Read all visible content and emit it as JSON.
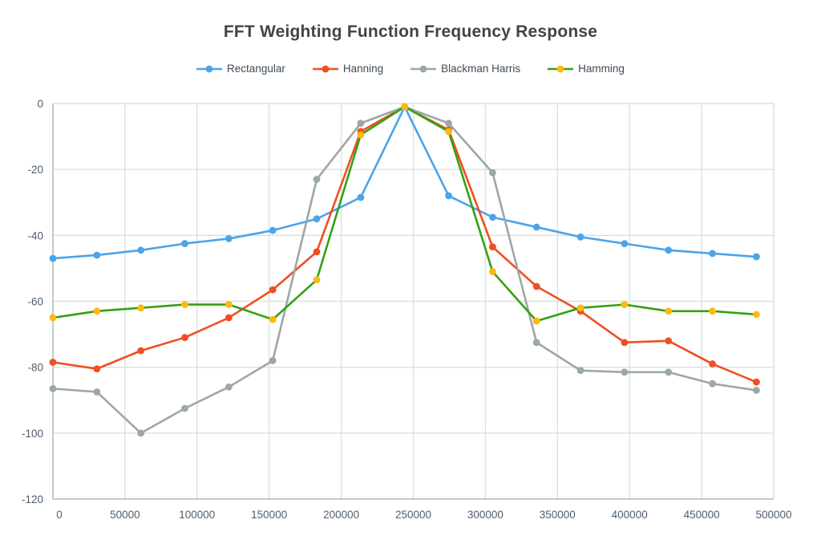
{
  "chart_data": {
    "type": "line",
    "title": "FFT Weighting Function Frequency Response",
    "xlabel": "",
    "ylabel": "",
    "xlim": [
      0,
      500000
    ],
    "ylim": [
      -120,
      0
    ],
    "x_ticks": [
      0,
      50000,
      100000,
      150000,
      200000,
      250000,
      300000,
      350000,
      400000,
      450000,
      500000
    ],
    "y_ticks": [
      0,
      -20,
      -40,
      -60,
      -80,
      -100,
      -120
    ],
    "grid": true,
    "legend_position": "top",
    "x": [
      0,
      30500,
      61000,
      91500,
      122000,
      152500,
      183000,
      213500,
      244000,
      274500,
      305000,
      335500,
      366000,
      396500,
      427000,
      457500,
      488000
    ],
    "series": [
      {
        "name": "Rectangular",
        "color": "#4aa4ea",
        "marker_color": "#4aa4ea",
        "values": [
          -47,
          -46,
          -44.5,
          -42.5,
          -41,
          -38.5,
          -35,
          -28.5,
          -1,
          -28,
          -34.5,
          -37.5,
          -40.5,
          -42.5,
          -44.5,
          -45.5,
          -46.5
        ]
      },
      {
        "name": "Hanning",
        "color": "#f04e23",
        "marker_color": "#f04e23",
        "values": [
          -78.5,
          -80.5,
          -75,
          -71,
          -65,
          -56.5,
          -45,
          -8.5,
          -1,
          -8,
          -43.5,
          -55.5,
          -63,
          -72.5,
          -72,
          -79,
          -84.5
        ]
      },
      {
        "name": "Blackman Harris",
        "color": "#9ca8a4",
        "marker_color": "#9ca8a4",
        "values": [
          -86.5,
          -87.5,
          -100,
          -92.5,
          -86,
          -78,
          -23,
          -6,
          -1,
          -6,
          -21,
          -72.5,
          -81,
          -81.5,
          -81.5,
          -85,
          -87
        ]
      },
      {
        "name": "Hamming",
        "color": "#33a112",
        "marker_color": "#ffb80e",
        "values": [
          -65,
          -63,
          -62,
          -61,
          -61,
          -65.5,
          -53.5,
          -9.5,
          -1,
          -8.5,
          -51,
          -66,
          -62,
          -61,
          -63,
          -63,
          -64
        ]
      }
    ]
  },
  "style": {
    "grid_color": "#d9e2df",
    "axis_color": "#b3bfbf",
    "tick_label_color": "#4e5d6e",
    "title_color": "#3f444a",
    "legend_text_color": "#3d4a57",
    "background": "#ffffff"
  }
}
